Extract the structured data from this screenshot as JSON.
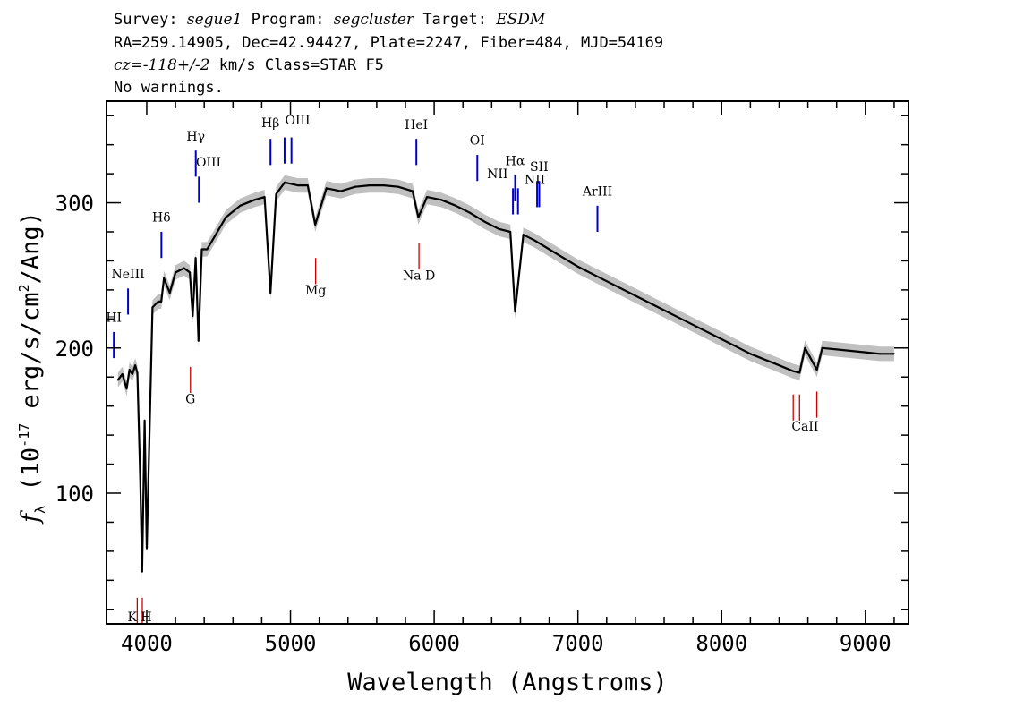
{
  "header": {
    "line1": {
      "survey_label": "Survey: ",
      "survey": "segue1",
      "program_label": " Program: ",
      "program": "segcluster",
      "target_label": " Target: ",
      "target": "ESDM"
    },
    "line2": "RA=259.14905, Dec=42.94427, Plate=2247, Fiber=484, MJD=54169",
    "line3": {
      "cz": "cz=-118+/-2",
      "rest": " km/s Class=STAR F5"
    },
    "line4": "No warnings."
  },
  "chart_data": {
    "type": "line",
    "xlabel": "Wavelength (Angstroms)",
    "ylabel": "f_λ (10^-17 erg/s/cm^2/Ang)",
    "xlim": [
      3720,
      9300
    ],
    "ylim": [
      10,
      370
    ],
    "x_ticks": [
      4000,
      5000,
      6000,
      7000,
      8000,
      9000
    ],
    "y_ticks": [
      100,
      200,
      300
    ],
    "colors": {
      "flux": "#000000",
      "error_band": "#c0c0c0",
      "emission": "#0000cc",
      "absorption": "#cc0000"
    },
    "series": [
      {
        "x": [
          3800,
          3830,
          3860,
          3880,
          3900,
          3920,
          3935,
          3955,
          3968,
          3985,
          4000,
          4040,
          4080,
          4101,
          4120,
          4160,
          4200,
          4260,
          4300,
          4320,
          4340,
          4360,
          4383,
          4420,
          4480,
          4550,
          4650,
          4750,
          4820,
          4861,
          4900,
          4960,
          5050,
          5120,
          5172,
          5250,
          5350,
          5450,
          5550,
          5650,
          5750,
          5850,
          5890,
          5950,
          6050,
          6150,
          6250,
          6350,
          6450,
          6530,
          6563,
          6620,
          6700,
          6800,
          6900,
          7000,
          7200,
          7400,
          7600,
          7800,
          8000,
          8200,
          8400,
          8498,
          8542,
          8580,
          8662,
          8700,
          8800,
          8900,
          9000,
          9100,
          9200
        ],
        "y": [
          178,
          182,
          172,
          185,
          182,
          188,
          183,
          110,
          46,
          150,
          62,
          228,
          232,
          232,
          248,
          238,
          252,
          255,
          252,
          222,
          262,
          205,
          268,
          268,
          278,
          290,
          298,
          302,
          304,
          238,
          306,
          314,
          312,
          312,
          285,
          310,
          308,
          311,
          312,
          312,
          311,
          308,
          290,
          304,
          302,
          298,
          293,
          287,
          282,
          280,
          225,
          278,
          274,
          268,
          262,
          256,
          246,
          236,
          226,
          216,
          206,
          196,
          188,
          184,
          183,
          200,
          185,
          200,
          199,
          198,
          197,
          196,
          196
        ]
      }
    ],
    "emission_lines": [
      {
        "label": "HI",
        "wave": 3771,
        "y_top": 211,
        "y_bottom": 193
      },
      {
        "label": "NeIII",
        "wave": 3870,
        "y_top": 241,
        "y_bottom": 223
      },
      {
        "label": "Hδ",
        "wave": 4102,
        "y_top": 280,
        "y_bottom": 262
      },
      {
        "label": "Hγ",
        "wave": 4341,
        "y_top": 336,
        "y_bottom": 318
      },
      {
        "label": "OIII",
        "wave": 4363,
        "y_top": 318,
        "y_bottom": 300
      },
      {
        "label": "Hβ",
        "wave": 4861,
        "y_top": 344,
        "y_bottom": 326
      },
      {
        "label": "OIII",
        "wave": 4959,
        "y_top": 345,
        "y_bottom": 327
      },
      {
        "label": "OIII",
        "wave": 5007,
        "y_top": 345,
        "y_bottom": 327
      },
      {
        "label": "HeI",
        "wave": 5876,
        "y_top": 344,
        "y_bottom": 326
      },
      {
        "label": "OI",
        "wave": 6300,
        "y_top": 333,
        "y_bottom": 315
      },
      {
        "label": "NII",
        "wave": 6548,
        "y_top": 310,
        "y_bottom": 292
      },
      {
        "label": "Hα",
        "wave": 6563,
        "y_top": 319,
        "y_bottom": 301
      },
      {
        "label": "NII",
        "wave": 6583,
        "y_top": 310,
        "y_bottom": 292
      },
      {
        "label": "SII",
        "wave": 6716,
        "y_top": 315,
        "y_bottom": 297
      },
      {
        "label": "SII",
        "wave": 6731,
        "y_top": 315,
        "y_bottom": 297
      },
      {
        "label": "ArIII",
        "wave": 7136,
        "y_top": 298,
        "y_bottom": 280
      }
    ],
    "absorption_lines": [
      {
        "label": "K",
        "wave": 3934,
        "y_top": 28,
        "y_bottom": 10
      },
      {
        "label": "H",
        "wave": 3969,
        "y_top": 28,
        "y_bottom": 10
      },
      {
        "label": "G",
        "wave": 4304,
        "y_top": 187,
        "y_bottom": 169
      },
      {
        "label": "Mg",
        "wave": 5175,
        "y_top": 262,
        "y_bottom": 244
      },
      {
        "label": "Na D",
        "wave": 5894,
        "y_top": 272,
        "y_bottom": 254
      },
      {
        "label": "CaII",
        "wave": 8498,
        "y_top": 168,
        "y_bottom": 150
      },
      {
        "label": "CaII",
        "wave": 8542,
        "y_top": 168,
        "y_bottom": 150
      },
      {
        "label": "CaII",
        "wave": 8662,
        "y_top": 170,
        "y_bottom": 152
      }
    ],
    "line_labels": [
      {
        "text": "HI",
        "wave": 3771,
        "y": 218,
        "color": "#000000"
      },
      {
        "text": "NeIII",
        "wave": 3870,
        "y": 248,
        "color": "#000000"
      },
      {
        "text": "Hδ",
        "wave": 4102,
        "y": 287,
        "color": "#000000"
      },
      {
        "text": "Hγ",
        "wave": 4341,
        "y": 343,
        "color": "#000000"
      },
      {
        "text": "OIII",
        "wave": 4430,
        "y": 325,
        "color": "#000000"
      },
      {
        "text": "Hβ",
        "wave": 4861,
        "y": 352,
        "color": "#000000"
      },
      {
        "text": "OIII",
        "wave": 5050,
        "y": 354,
        "color": "#000000"
      },
      {
        "text": "HeI",
        "wave": 5876,
        "y": 351,
        "color": "#000000"
      },
      {
        "text": "OI",
        "wave": 6300,
        "y": 340,
        "color": "#000000"
      },
      {
        "text": "NII",
        "wave": 6440,
        "y": 317,
        "color": "#000000"
      },
      {
        "text": "Hα",
        "wave": 6563,
        "y": 326,
        "color": "#000000"
      },
      {
        "text": "SII",
        "wave": 6730,
        "y": 322,
        "color": "#000000"
      },
      {
        "text": "NII",
        "wave": 6700,
        "y": 313,
        "color": "#000000"
      },
      {
        "text": "ArIII",
        "wave": 7136,
        "y": 305,
        "color": "#000000"
      },
      {
        "text": "K H",
        "wave": 3951,
        "y": 12,
        "color": "#000000"
      },
      {
        "text": "G",
        "wave": 4304,
        "y": 162,
        "color": "#000000"
      },
      {
        "text": "Mg",
        "wave": 5175,
        "y": 237,
        "color": "#000000"
      },
      {
        "text": "Na  D",
        "wave": 5894,
        "y": 247,
        "color": "#000000"
      },
      {
        "text": "CaII",
        "wave": 8580,
        "y": 143,
        "color": "#000000"
      }
    ]
  }
}
